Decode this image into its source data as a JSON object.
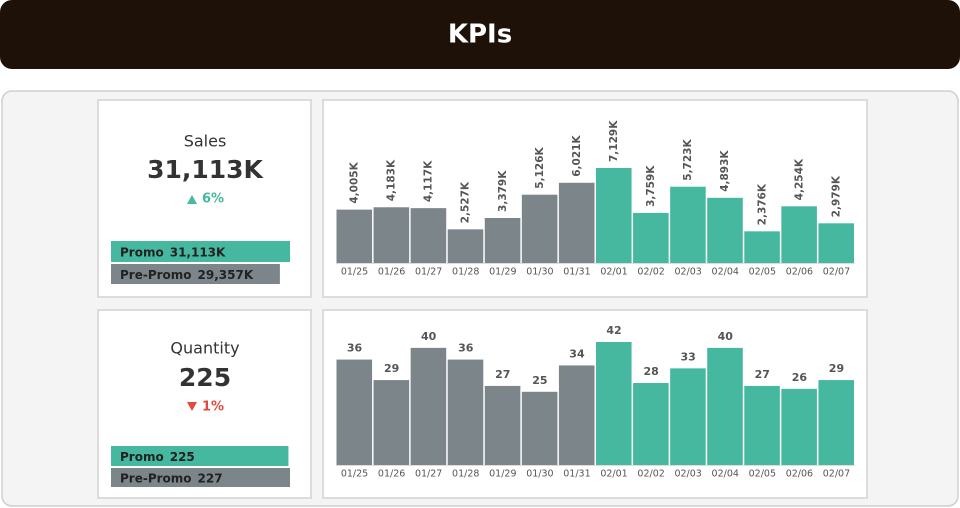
{
  "title": "KPIs",
  "kpis": [
    {
      "name": "Sales",
      "value": "31,113K",
      "change": "6%",
      "direction": "up",
      "comparison": [
        {
          "name": "Promo",
          "value": 31113,
          "value_label": "31,113K",
          "color": "#47b8a0"
        },
        {
          "name": "Pre-Promo",
          "value": 29357,
          "value_label": "29,357K",
          "color": "#7c858a"
        }
      ]
    },
    {
      "name": "Quantity",
      "value": "225",
      "change": "1%",
      "direction": "down",
      "comparison": [
        {
          "name": "Promo",
          "value": 225,
          "value_label": "225",
          "color": "#47b8a0"
        },
        {
          "name": "Pre-Promo",
          "value": 227,
          "value_label": "227",
          "color": "#7c858a"
        }
      ]
    }
  ],
  "chart_data": [
    {
      "type": "bar",
      "label_orientation": "vertical",
      "categories": [
        "01/25",
        "01/26",
        "01/27",
        "01/28",
        "01/29",
        "01/30",
        "01/31",
        "02/01",
        "02/02",
        "02/03",
        "02/04",
        "02/05",
        "02/06",
        "02/07"
      ],
      "values": [
        4005,
        4183,
        4117,
        2527,
        3379,
        5126,
        6021,
        7129,
        3759,
        5723,
        4893,
        2376,
        4254,
        2979
      ],
      "value_labels": [
        "4,005K",
        "4,183K",
        "4,117K",
        "2,527K",
        "3,379K",
        "5,126K",
        "6,021K",
        "7,129K",
        "3,759K",
        "5,723K",
        "4,893K",
        "2,376K",
        "4,254K",
        "2,979K"
      ],
      "colors": [
        "#7c858a",
        "#7c858a",
        "#7c858a",
        "#7c858a",
        "#7c858a",
        "#7c858a",
        "#7c858a",
        "#47b8a0",
        "#47b8a0",
        "#47b8a0",
        "#47b8a0",
        "#47b8a0",
        "#47b8a0",
        "#47b8a0"
      ]
    },
    {
      "type": "bar",
      "label_orientation": "horizontal",
      "categories": [
        "01/25",
        "01/26",
        "01/27",
        "01/28",
        "01/29",
        "01/30",
        "01/31",
        "02/01",
        "02/02",
        "02/03",
        "02/04",
        "02/05",
        "02/06",
        "02/07"
      ],
      "values": [
        36,
        29,
        40,
        36,
        27,
        25,
        34,
        42,
        28,
        33,
        40,
        27,
        26,
        29
      ],
      "colors": [
        "#7c858a",
        "#7c858a",
        "#7c858a",
        "#7c858a",
        "#7c858a",
        "#7c858a",
        "#7c858a",
        "#47b8a0",
        "#47b8a0",
        "#47b8a0",
        "#47b8a0",
        "#47b8a0",
        "#47b8a0",
        "#47b8a0"
      ]
    }
  ]
}
